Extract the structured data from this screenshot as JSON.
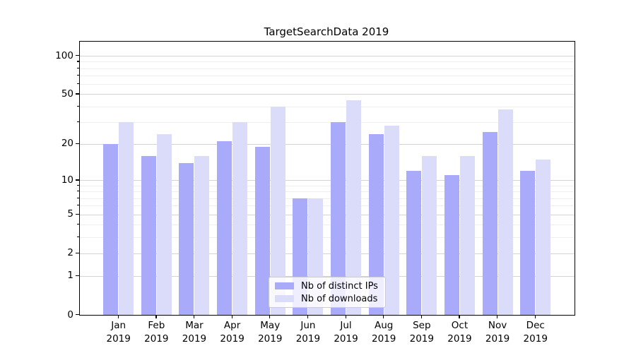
{
  "figure": {
    "title": "TargetSearchData 2019"
  },
  "chart_data": {
    "type": "bar",
    "title": "TargetSearchData 2019",
    "subtitle": "",
    "xlabel": "",
    "ylabel": "",
    "scale": "log1p",
    "grid": true,
    "categories": [
      "Jan",
      "Feb",
      "Mar",
      "Apr",
      "May",
      "Jun",
      "Jul",
      "Aug",
      "Sep",
      "Oct",
      "Nov",
      "Dec"
    ],
    "x_year": "2019",
    "series": [
      {
        "name": "Nb of distinct IPs",
        "color": "#aaaafa",
        "values": [
          20,
          16,
          14,
          21,
          19,
          7,
          30,
          24,
          12,
          11,
          25,
          12
        ]
      },
      {
        "name": "Nb of downloads",
        "color": "#dbdbfa",
        "values": [
          30,
          24,
          16,
          30,
          40,
          7,
          45,
          28,
          16,
          16,
          38,
          15
        ]
      }
    ],
    "y_axis": {
      "major_ticks": [
        100,
        50,
        20,
        10,
        5,
        2,
        1,
        0
      ],
      "minor_ticks": [
        3,
        4,
        6,
        7,
        8,
        9,
        30,
        40,
        60,
        70,
        80,
        90
      ],
      "top_value": 129
    },
    "legend": {
      "position": "lower center",
      "entries": [
        "Nb of distinct IPs",
        "Nb of downloads"
      ]
    }
  },
  "colors": {
    "bar_dark": "#aaaafa",
    "bar_light": "#dbdbfa",
    "grid_major": "#d4d4d4",
    "grid_minor": "#efefef",
    "spine": "#000000",
    "legend_border": "#cccccc"
  }
}
